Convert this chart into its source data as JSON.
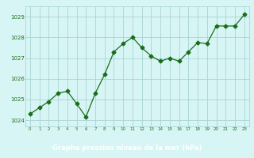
{
  "x": [
    0,
    1,
    2,
    3,
    4,
    5,
    6,
    7,
    8,
    9,
    10,
    11,
    12,
    13,
    14,
    15,
    16,
    17,
    18,
    19,
    20,
    21,
    22,
    23
  ],
  "y": [
    1024.3,
    1024.6,
    1024.9,
    1025.3,
    1025.4,
    1024.8,
    1024.15,
    1025.3,
    1026.2,
    1027.3,
    1027.7,
    1028.0,
    1027.5,
    1027.1,
    1026.85,
    1027.0,
    1026.85,
    1027.3,
    1027.75,
    1027.7,
    1028.55,
    1028.55,
    1028.55,
    1029.1
  ],
  "line_color": "#1a6e1a",
  "marker": "D",
  "marker_size": 2.5,
  "bg_color": "#d8f5f5",
  "grid_color": "#a0cece",
  "xlabel": "Graphe pression niveau de la mer (hPa)",
  "xlabel_color": "#ffffff",
  "xlabel_bg": "#2e7d2e",
  "tick_label_color": "#1a6e1a",
  "ylim": [
    1023.7,
    1029.5
  ],
  "yticks": [
    1024,
    1025,
    1026,
    1027,
    1028,
    1029
  ],
  "xticks": [
    0,
    1,
    2,
    3,
    4,
    5,
    6,
    7,
    8,
    9,
    10,
    11,
    12,
    13,
    14,
    15,
    16,
    17,
    18,
    19,
    20,
    21,
    22,
    23
  ]
}
